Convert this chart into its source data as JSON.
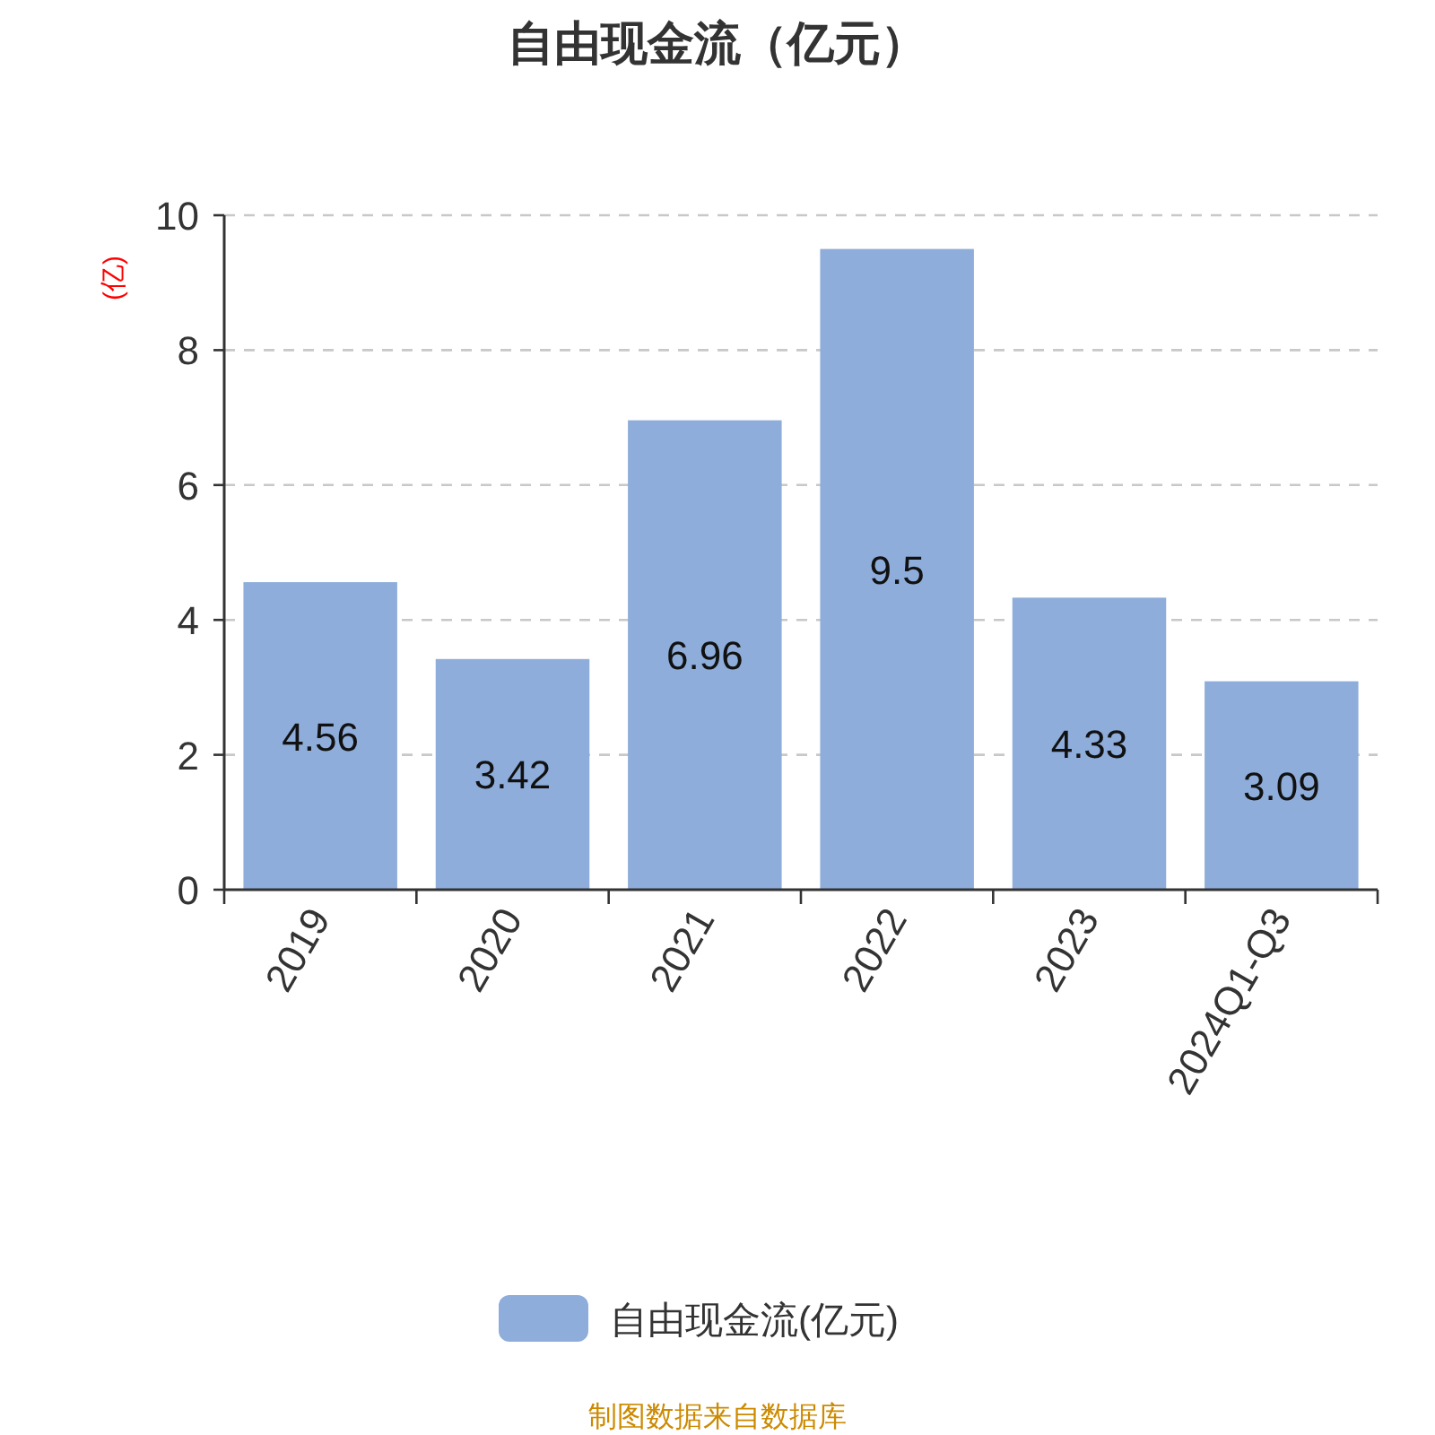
{
  "chart_data": {
    "type": "bar",
    "title": "自由现金流（亿元）",
    "ylabel": "(亿)",
    "categories": [
      "2019",
      "2020",
      "2021",
      "2022",
      "2023",
      "2024Q1-Q3"
    ],
    "series": [
      {
        "name": "自由现金流(亿元)",
        "color": "#8eadda",
        "values": [
          4.56,
          3.42,
          6.96,
          9.5,
          4.33,
          3.09
        ]
      }
    ],
    "ylim": [
      0,
      10
    ],
    "yticks": [
      0,
      2,
      4,
      6,
      8,
      10
    ],
    "grid": "y",
    "legend": "bottom",
    "data_labels": true,
    "annotations": [
      "制图数据来自数据库"
    ]
  }
}
